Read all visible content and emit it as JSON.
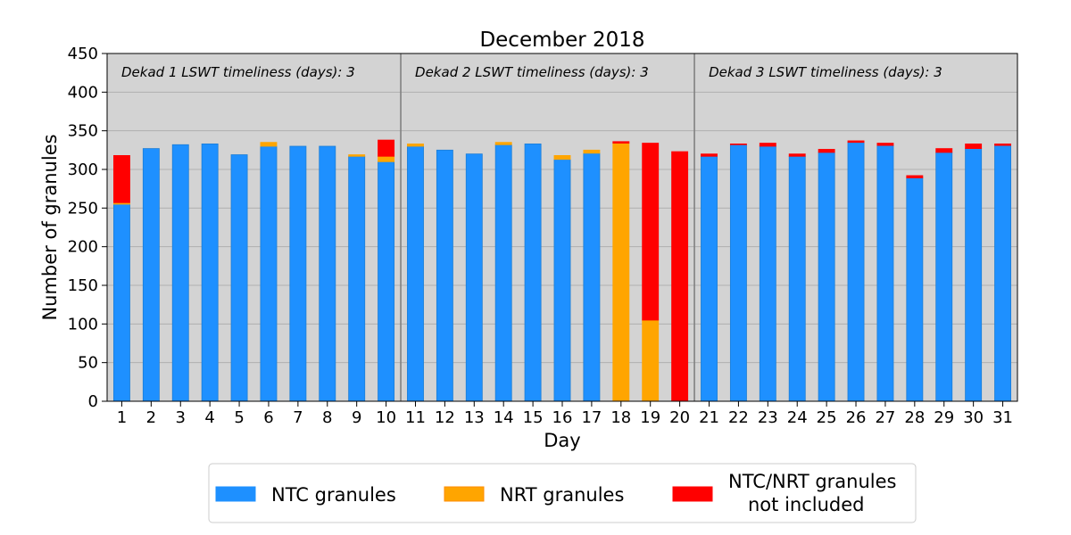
{
  "chart_data": {
    "type": "bar",
    "title": "December 2018",
    "xlabel": "Day",
    "ylabel": "Number of granules",
    "ylim": [
      0,
      450
    ],
    "yticks": [
      0,
      50,
      100,
      150,
      200,
      250,
      300,
      350,
      400,
      450
    ],
    "categories": [
      "1",
      "2",
      "3",
      "4",
      "5",
      "6",
      "7",
      "8",
      "9",
      "10",
      "11",
      "12",
      "13",
      "14",
      "15",
      "16",
      "17",
      "18",
      "19",
      "20",
      "21",
      "22",
      "23",
      "24",
      "25",
      "26",
      "27",
      "28",
      "29",
      "30",
      "31"
    ],
    "stacked": true,
    "grid": "horizontal",
    "series": [
      {
        "name": "NTC granules",
        "color": "#1e90ff",
        "values": [
          255,
          327,
          332,
          333,
          319,
          330,
          330,
          330,
          317,
          310,
          330,
          325,
          320,
          332,
          333,
          313,
          321,
          0,
          0,
          0,
          317,
          332,
          330,
          317,
          322,
          335,
          331,
          289,
          322,
          327,
          331
        ]
      },
      {
        "name": "NRT granules",
        "color": "#ffa500",
        "values": [
          2,
          0,
          0,
          0,
          0,
          5,
          0,
          0,
          2,
          7,
          3,
          0,
          0,
          3,
          0,
          5,
          4,
          334,
          105,
          0,
          0,
          0,
          0,
          0,
          0,
          0,
          0,
          0,
          0,
          0,
          0
        ]
      },
      {
        "name": "NTC/NRT granules not included",
        "color": "#ff0000",
        "values": [
          61,
          0,
          0,
          0,
          0,
          0,
          0,
          0,
          0,
          21,
          0,
          0,
          0,
          0,
          0,
          0,
          0,
          2,
          229,
          323,
          3,
          1,
          4,
          3,
          4,
          2,
          3,
          3,
          5,
          6,
          2
        ]
      }
    ],
    "dekads": [
      {
        "label": "Dekad 1 LSWT timeliness (days): 3",
        "start_day": 1,
        "end_day": 10
      },
      {
        "label": "Dekad 2 LSWT timeliness (days): 3",
        "start_day": 11,
        "end_day": 20
      },
      {
        "label": "Dekad 3 LSWT timeliness (days): 3",
        "start_day": 21,
        "end_day": 31
      }
    ],
    "legend": {
      "placement": "bottom",
      "entries": [
        {
          "line1": "NTC granules",
          "line2": "",
          "color": "#1e90ff",
          "edge": "#1e90ff"
        },
        {
          "line1": "NRT granules",
          "line2": "",
          "color": "#ffa500",
          "edge": "#ff8c00"
        },
        {
          "line1": "NTC/NRT granules",
          "line2": "not included",
          "color": "#ff0000",
          "edge": "#ff0000"
        }
      ]
    },
    "colors": {
      "background": "#d3d3d3",
      "grid": "#b0b0b0",
      "divider": "#808080"
    }
  }
}
